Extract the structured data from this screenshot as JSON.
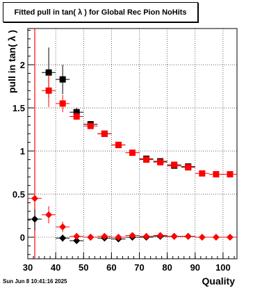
{
  "chart_data": {
    "type": "scatter",
    "title": "Fitted pull in tan( λ ) for Global Rec Pion NoHits",
    "xlabel": "Quality",
    "ylabel": "pull in tan( λ )",
    "xlim": [
      30,
      105
    ],
    "ylim": [
      -0.25,
      2.42
    ],
    "x_ticks": [
      "30",
      "40",
      "50",
      "60",
      "70",
      "80",
      "90",
      "100"
    ],
    "y_ticks": [
      "0",
      "0.5",
      "1",
      "1.5",
      "2"
    ],
    "grid": true,
    "x_bin_half_width": 2.5,
    "red_vertical_line_x": 32.5,
    "series": [
      {
        "marker": "square",
        "color": "#000000",
        "points": [
          [
            37.5,
            1.91,
            0.29
          ],
          [
            42.5,
            1.83,
            0.17
          ],
          [
            47.5,
            1.45,
            0.05
          ],
          [
            52.5,
            1.31,
            0.03
          ],
          [
            57.5,
            1.2,
            0.02
          ],
          [
            62.5,
            1.07,
            0.02
          ],
          [
            67.5,
            0.98,
            0.02
          ],
          [
            72.5,
            0.91,
            0.02
          ],
          [
            77.5,
            0.88,
            0.02
          ],
          [
            82.5,
            0.83,
            0.02
          ],
          [
            87.5,
            0.82,
            0.02
          ]
        ]
      },
      {
        "marker": "square",
        "color": "#ff0000",
        "points": [
          [
            37.5,
            1.7,
            0.19
          ],
          [
            42.5,
            1.55,
            0.1
          ],
          [
            47.5,
            1.4,
            0.04
          ],
          [
            52.5,
            1.29,
            0.03
          ],
          [
            57.5,
            1.2,
            0.02
          ],
          [
            62.5,
            1.07,
            0.02
          ],
          [
            67.5,
            0.98,
            0.02
          ],
          [
            72.5,
            0.9,
            0.02
          ],
          [
            77.5,
            0.87,
            0.02
          ],
          [
            82.5,
            0.84,
            0.02
          ],
          [
            87.5,
            0.81,
            0.02
          ],
          [
            92.5,
            0.74,
            0.02
          ],
          [
            97.5,
            0.73,
            0.02
          ],
          [
            102.5,
            0.73,
            0.02
          ]
        ]
      },
      {
        "marker": "diamond",
        "color": "#000000",
        "points": [
          [
            32.5,
            0.21,
            0.13
          ],
          [
            42.5,
            -0.01,
            0.04
          ],
          [
            47.5,
            -0.04,
            0.02
          ],
          [
            52.5,
            0.0,
            0.02
          ],
          [
            57.5,
            -0.01,
            0.01
          ],
          [
            62.5,
            -0.02,
            0.01
          ],
          [
            67.5,
            0.0,
            0.01
          ],
          [
            72.5,
            0.0,
            0.01
          ],
          [
            77.5,
            0.01,
            0.01
          ],
          [
            82.5,
            0.01,
            0.01
          ],
          [
            87.5,
            0.01,
            0.01
          ]
        ]
      },
      {
        "marker": "diamond",
        "color": "#ff0000",
        "points": [
          [
            32.5,
            0.45,
            0.13
          ],
          [
            37.5,
            0.26,
            0.1
          ],
          [
            42.5,
            0.12,
            0.06
          ],
          [
            47.5,
            0.01,
            0.03
          ],
          [
            52.5,
            0.0,
            0.02
          ],
          [
            57.5,
            0.01,
            0.01
          ],
          [
            62.5,
            0.0,
            0.01
          ],
          [
            67.5,
            0.02,
            0.01
          ],
          [
            72.5,
            0.01,
            0.01
          ],
          [
            77.5,
            0.02,
            0.01
          ],
          [
            82.5,
            0.01,
            0.01
          ],
          [
            87.5,
            0.01,
            0.01
          ],
          [
            92.5,
            0.0,
            0.01
          ],
          [
            97.5,
            0.0,
            0.01
          ],
          [
            102.5,
            0.0,
            0.01
          ]
        ]
      }
    ]
  },
  "timestamp": "Sun Jun  8 10:41:16 2025"
}
